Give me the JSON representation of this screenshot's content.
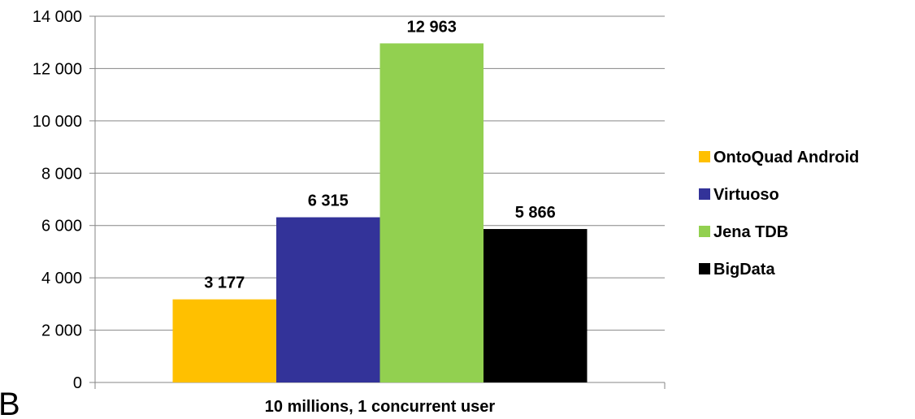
{
  "corner_label": "B",
  "chart_data": {
    "type": "bar",
    "categories": [
      "10 millions, 1 concurrent user"
    ],
    "series": [
      {
        "name": "OntoQuad Android",
        "values": [
          3177
        ],
        "label": "3 177",
        "color": "#FFC000"
      },
      {
        "name": "Virtuoso",
        "values": [
          6315
        ],
        "label": "6 315",
        "color": "#333399"
      },
      {
        "name": "Jena TDB",
        "values": [
          12963
        ],
        "label": "12 963",
        "color": "#92D050"
      },
      {
        "name": "BigData",
        "values": [
          5866
        ],
        "label": "5 866",
        "color": "#000000"
      }
    ],
    "yticks": [
      {
        "value": 0,
        "label": "0"
      },
      {
        "value": 2000,
        "label": "2 000"
      },
      {
        "value": 4000,
        "label": "4 000"
      },
      {
        "value": 6000,
        "label": "6 000"
      },
      {
        "value": 8000,
        "label": "8 000"
      },
      {
        "value": 10000,
        "label": "10 000"
      },
      {
        "value": 12000,
        "label": "12 000"
      },
      {
        "value": 14000,
        "label": "14 000"
      }
    ],
    "ylim": [
      0,
      14000
    ],
    "grid": true,
    "legend": "right"
  }
}
